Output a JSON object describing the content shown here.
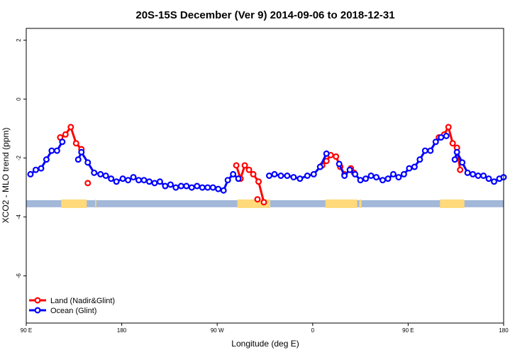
{
  "chart_data": {
    "type": "line",
    "title": "20S-15S December (Ver 9)   2014-09-06 to 2018-12-31",
    "xlabel": "Longitude (deg E)",
    "ylabel": "XCO2 - MLO trend (ppm)",
    "xlim": [
      90,
      540
    ],
    "ylim": [
      -7.6,
      2.4
    ],
    "x_ticks": [
      {
        "value": 90,
        "label": "90 E"
      },
      {
        "value": 180,
        "label": "180"
      },
      {
        "value": 270,
        "label": "90 W"
      },
      {
        "value": 360,
        "label": "0"
      },
      {
        "value": 450,
        "label": "90 E"
      },
      {
        "value": 540,
        "label": "180"
      }
    ],
    "y_ticks": [
      {
        "value": 2,
        "label": "2"
      },
      {
        "value": 0,
        "label": "0"
      },
      {
        "value": -2,
        "label": "-2"
      },
      {
        "value": -4,
        "label": "-4"
      },
      {
        "value": -6,
        "label": "-6"
      }
    ],
    "colors": {
      "land": "#ff0000",
      "ocean": "#0000ff",
      "surface_ocean": "#a3b8d9",
      "surface_land": "#ffd97a"
    },
    "surface_strip": {
      "y": -3.55,
      "land_segments": [
        [
          123,
          147
        ],
        [
          155,
          156
        ],
        [
          289,
          320
        ],
        [
          372,
          402
        ],
        [
          404,
          406
        ],
        [
          480,
          503
        ]
      ]
    },
    "series": [
      {
        "name": "Land (Nadir&Glint)",
        "key": "land",
        "segments": [
          {
            "x": [
              122,
              127,
              132,
              137,
              142
            ],
            "y": [
              -1.3,
              -1.2,
              -0.95,
              -1.5,
              -1.7
            ]
          },
          {
            "x": [
              148
            ],
            "y": [
              -2.85
            ]
          },
          {
            "x": [
              288,
              292,
              296,
              300,
              304,
              309,
              314
            ],
            "y": [
              -2.25,
              -2.7,
              -2.25,
              -2.4,
              -2.55,
              -2.8,
              -3.5
            ]
          },
          {
            "x": [
              308
            ],
            "y": [
              -3.4
            ]
          },
          {
            "x": [
              369,
              373,
              377,
              382,
              386,
              390
            ],
            "y": [
              -2.25,
              -2.1,
              -1.9,
              -1.95,
              -2.3,
              -2.55
            ]
          },
          {
            "x": [
              396,
              399
            ],
            "y": [
              -2.35,
              -2.5
            ]
          },
          {
            "x": [
              479,
              484,
              488,
              492,
              496,
              499
            ],
            "y": [
              -1.3,
              -1.2,
              -0.95,
              -1.5,
              -1.65,
              -2.4
            ]
          }
        ]
      },
      {
        "name": "Ocean (Glint)",
        "key": "ocean",
        "segments": [
          {
            "x": [
              94,
              99,
              104,
              109,
              114,
              119,
              124
            ],
            "y": [
              -2.55,
              -2.4,
              -2.35,
              -2.05,
              -1.75,
              -1.75,
              -1.45
            ]
          },
          {
            "x": [
              139,
              142,
              148,
              154,
              160,
              165,
              170,
              175,
              181,
              186,
              191,
              196,
              201,
              206,
              211,
              216,
              221,
              226,
              231,
              236,
              241,
              246,
              251,
              256,
              261,
              266,
              271,
              276,
              280,
              285,
              290
            ],
            "y": [
              -2.05,
              -1.8,
              -2.15,
              -2.5,
              -2.55,
              -2.6,
              -2.7,
              -2.8,
              -2.7,
              -2.75,
              -2.65,
              -2.75,
              -2.75,
              -2.8,
              -2.85,
              -2.8,
              -2.95,
              -2.9,
              -3.0,
              -2.95,
              -2.95,
              -3.0,
              -2.95,
              -3.0,
              -3.0,
              -3.0,
              -3.05,
              -3.1,
              -2.75,
              -2.55,
              -2.7
            ]
          },
          {
            "x": [
              319,
              324,
              330,
              336,
              342,
              348,
              355,
              361,
              367,
              373
            ],
            "y": [
              -2.6,
              -2.55,
              -2.6,
              -2.6,
              -2.65,
              -2.7,
              -2.6,
              -2.55,
              -2.3,
              -1.85
            ]
          },
          {
            "x": [
              385,
              390,
              395,
              400,
              405,
              410,
              415,
              420,
              426,
              431,
              436,
              441,
              446,
              451,
              456,
              461,
              466,
              471,
              476,
              481,
              486
            ],
            "y": [
              -2.2,
              -2.6,
              -2.4,
              -2.55,
              -2.75,
              -2.7,
              -2.6,
              -2.65,
              -2.75,
              -2.7,
              -2.55,
              -2.65,
              -2.55,
              -2.35,
              -2.3,
              -2.05,
              -1.75,
              -1.75,
              -1.45,
              -1.3,
              -1.25
            ]
          },
          {
            "x": [
              494,
              496,
              501,
              506,
              511,
              516,
              521,
              526,
              531,
              536,
              540
            ],
            "y": [
              -2.05,
              -1.8,
              -2.15,
              -2.5,
              -2.55,
              -2.6,
              -2.6,
              -2.7,
              -2.8,
              -2.7,
              -2.65
            ]
          }
        ]
      }
    ],
    "legend": {
      "placement": "bottom-left",
      "entries": [
        "Land (Nadir&Glint)",
        "Ocean (Glint)"
      ]
    }
  }
}
